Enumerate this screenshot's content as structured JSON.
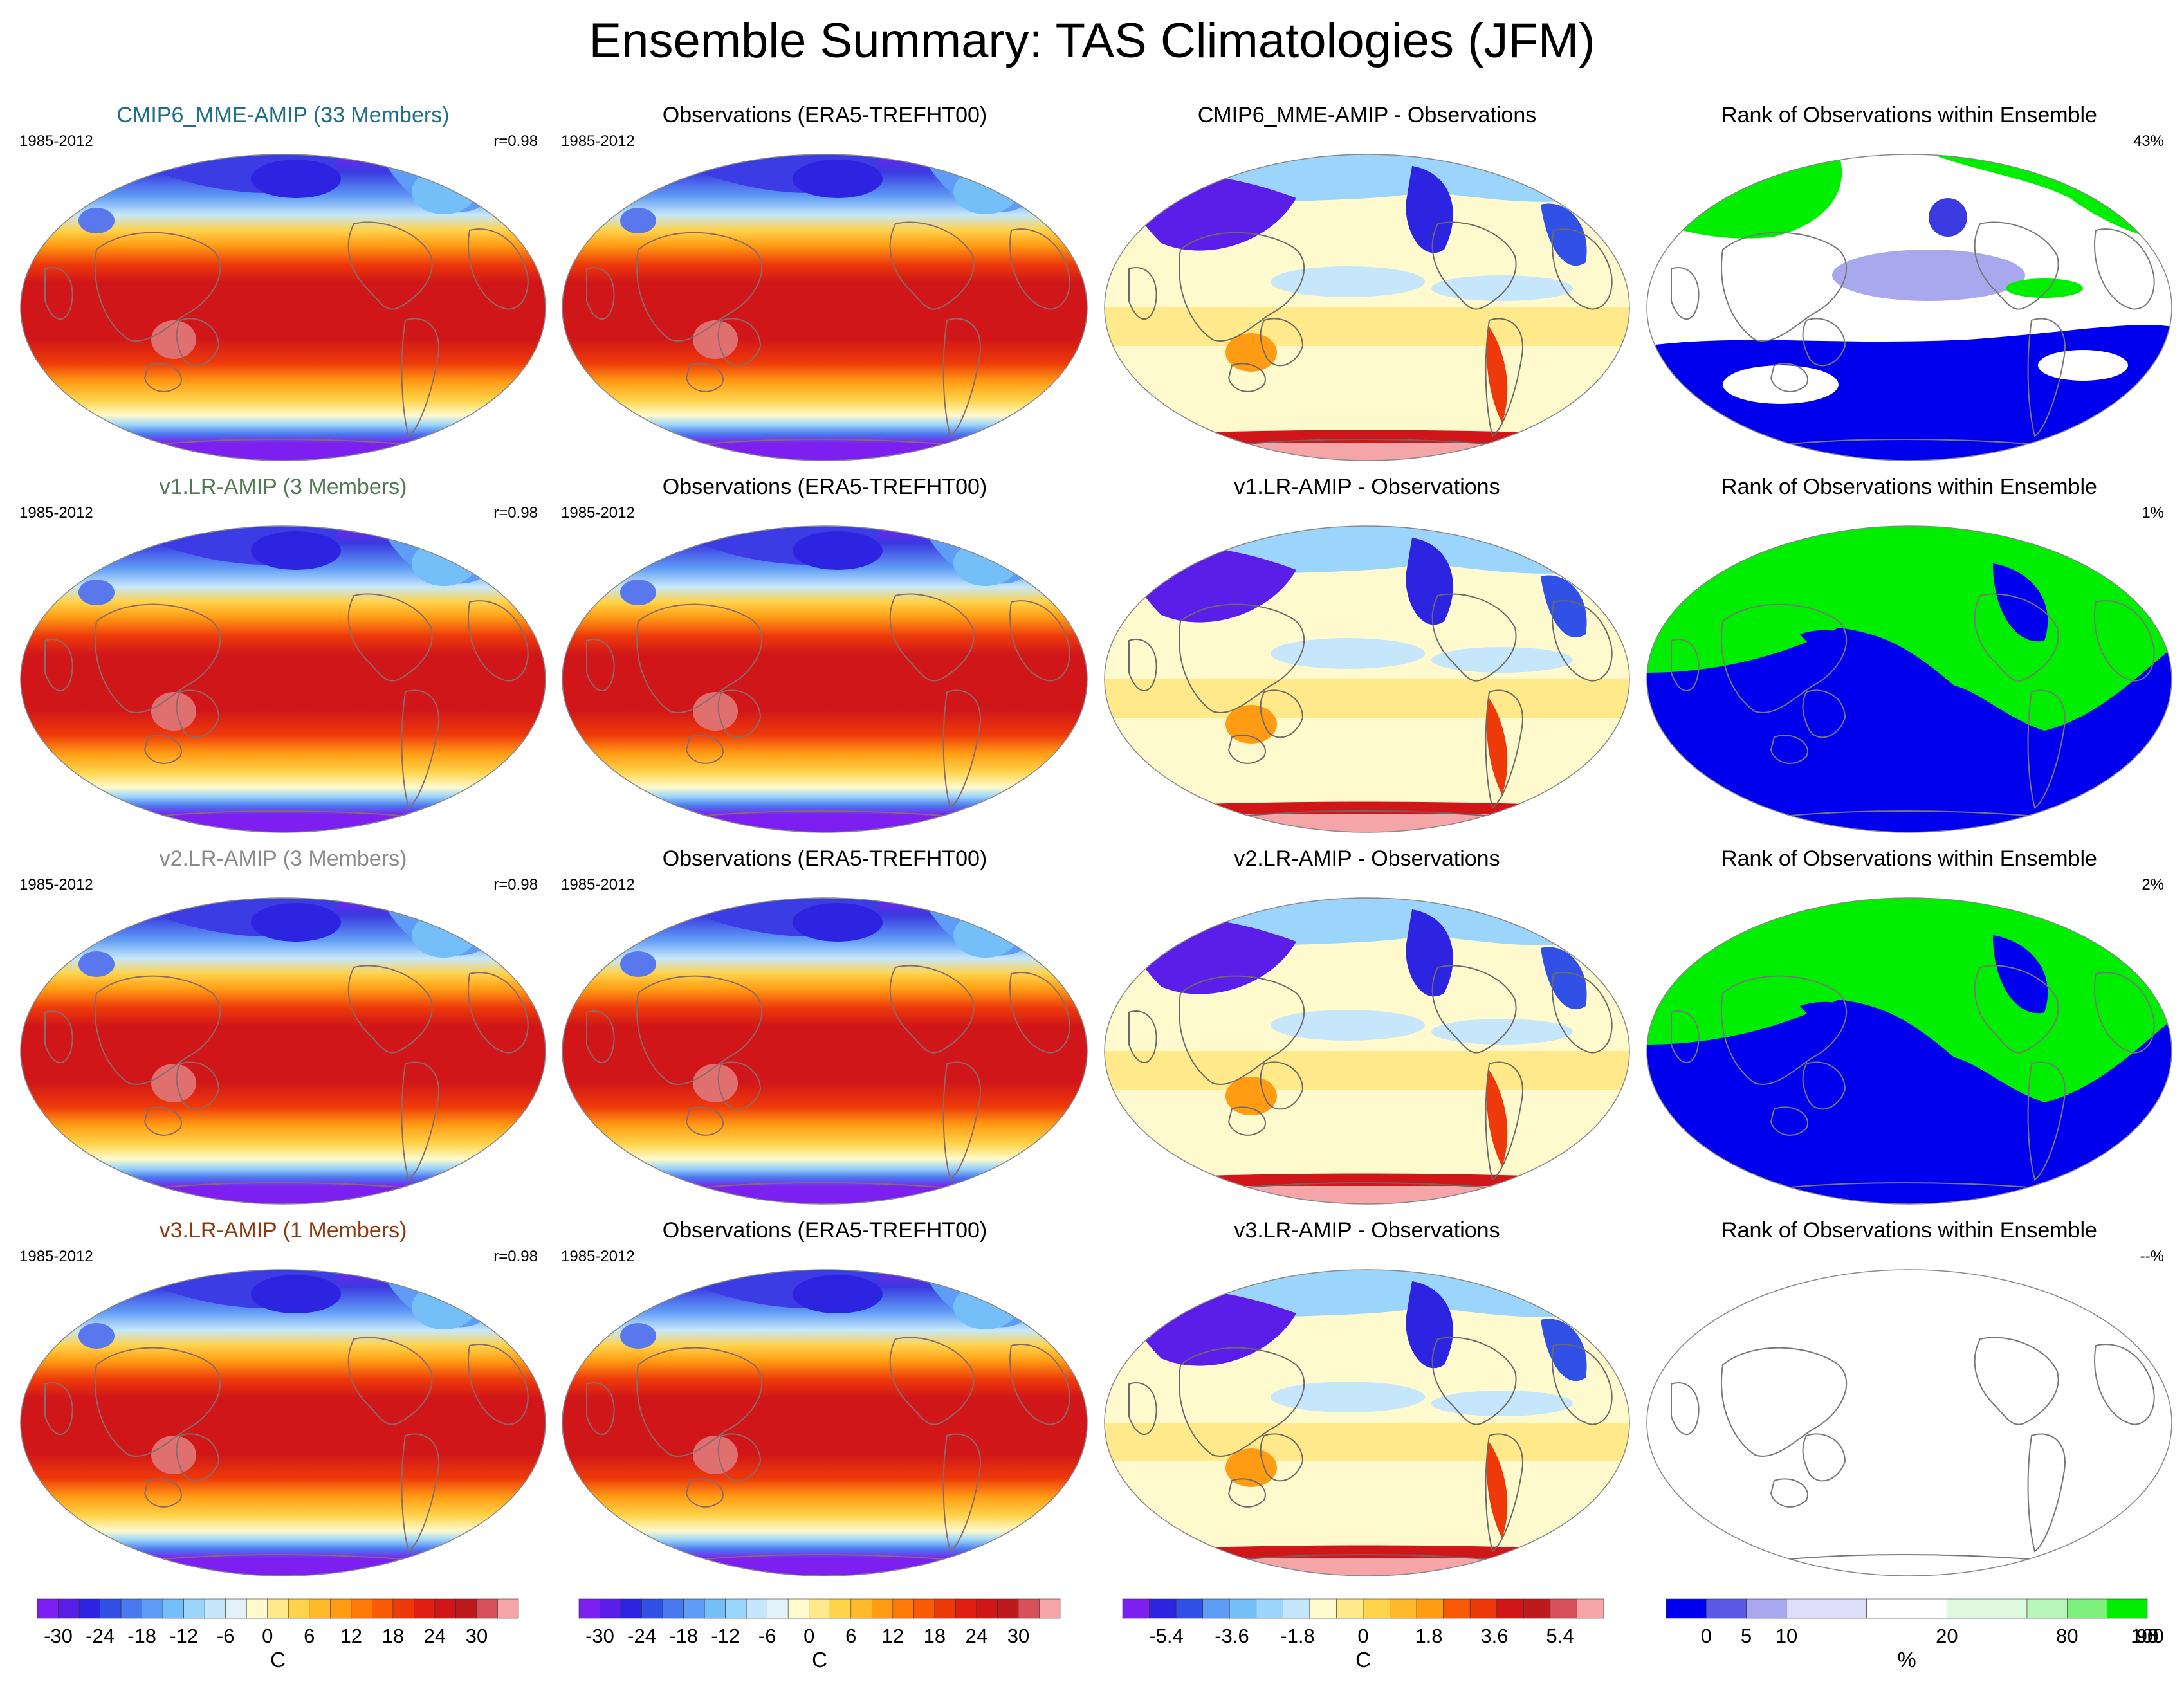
{
  "title": "Ensemble Summary: TAS Climatologies (JFM)",
  "rows": [
    {
      "model": {
        "title": "CMIP6_MME-AMIP (33 Members)",
        "color": "#1f6e8c",
        "years": "1985-2012",
        "stat": "r=0.98"
      },
      "obs": {
        "title": "Observations (ERA5-TREFHT00)",
        "years": "1985-2012"
      },
      "diff": {
        "title": "CMIP6_MME-AMIP - Observations"
      },
      "rank": {
        "title": "Rank of Observations within Ensemble",
        "stat": "43%",
        "pattern": "mixed"
      }
    },
    {
      "model": {
        "title": "v1.LR-AMIP (3 Members)",
        "color": "#4f7a52",
        "years": "1985-2012",
        "stat": "r=0.98"
      },
      "obs": {
        "title": "Observations (ERA5-TREFHT00)",
        "years": "1985-2012"
      },
      "diff": {
        "title": "v1.LR-AMIP - Observations"
      },
      "rank": {
        "title": "Rank of Observations within Ensemble",
        "stat": "1%",
        "pattern": "binary"
      }
    },
    {
      "model": {
        "title": "v2.LR-AMIP (3 Members)",
        "color": "#8a8a8a",
        "years": "1985-2012",
        "stat": "r=0.98"
      },
      "obs": {
        "title": "Observations (ERA5-TREFHT00)",
        "years": "1985-2012"
      },
      "diff": {
        "title": "v2.LR-AMIP - Observations"
      },
      "rank": {
        "title": "Rank of Observations within Ensemble",
        "stat": "2%",
        "pattern": "binary"
      }
    },
    {
      "model": {
        "title": "v3.LR-AMIP (1 Members)",
        "color": "#8b3a0f",
        "years": "1985-2012",
        "stat": "r=0.98"
      },
      "obs": {
        "title": "Observations (ERA5-TREFHT00)",
        "years": "1985-2012"
      },
      "diff": {
        "title": "v3.LR-AMIP - Observations"
      },
      "rank": {
        "title": "Rank of Observations within Ensemble",
        "stat": "--%",
        "pattern": "empty"
      }
    }
  ],
  "colorbars": [
    {
      "unit": "C",
      "colors": [
        "#7d1ff0",
        "#5a1ee8",
        "#2c24e0",
        "#3050e6",
        "#4a78ee",
        "#5f9cf5",
        "#74bff8",
        "#9bd5fb",
        "#c6e7fb",
        "#e3f2fa",
        "#fffacd",
        "#ffe98a",
        "#ffd34a",
        "#ffb92a",
        "#ff9c14",
        "#ff7a0a",
        "#f85a06",
        "#ee3a0a",
        "#e01f12",
        "#d01618",
        "#bd1a1e",
        "#d6515a",
        "#f5a5a8"
      ],
      "ticks": [
        "-30",
        "-24",
        "-18",
        "-12",
        "-6",
        "0",
        "6",
        "12",
        "18",
        "24",
        "30"
      ],
      "tick_at": [
        1,
        3,
        5,
        7,
        9,
        11,
        13,
        15,
        17,
        19,
        21
      ]
    },
    {
      "unit": "C",
      "colors": [
        "#7d1ff0",
        "#5a1ee8",
        "#2c24e0",
        "#3050e6",
        "#4a78ee",
        "#5f9cf5",
        "#74bff8",
        "#9bd5fb",
        "#c6e7fb",
        "#e3f2fa",
        "#fffacd",
        "#ffe98a",
        "#ffd34a",
        "#ffb92a",
        "#ff9c14",
        "#ff7a0a",
        "#f85a06",
        "#ee3a0a",
        "#e01f12",
        "#d01618",
        "#bd1a1e",
        "#d6515a",
        "#f5a5a8"
      ],
      "ticks": [
        "-30",
        "-24",
        "-18",
        "-12",
        "-6",
        "0",
        "6",
        "12",
        "18",
        "24",
        "30"
      ],
      "tick_at": [
        1,
        3,
        5,
        7,
        9,
        11,
        13,
        15,
        17,
        19,
        21
      ]
    },
    {
      "unit": "C",
      "colors": [
        "#7d1ff0",
        "#2c24e0",
        "#3050e6",
        "#5f9cf5",
        "#74bff8",
        "#9bd5fb",
        "#c6e7fb",
        "#fffacd",
        "#ffe98a",
        "#ffd34a",
        "#ffb92a",
        "#ff9c14",
        "#f85a06",
        "#ee3a0a",
        "#d01618",
        "#bd1a1e",
        "#d6515a",
        "#f5a5a8"
      ],
      "ticks": [
        "-5.4",
        "-3.6",
        "-1.8",
        "0",
        "1.8",
        "3.6",
        "5.4"
      ],
      "tick_at": [
        2,
        5,
        8,
        11,
        14,
        17,
        20
      ],
      "segments": 22
    },
    {
      "unit": "%",
      "colors": [
        "#0000ee",
        "#5a5ae6",
        "#a8a8ee",
        "#dedefa",
        "#ffffff",
        "#dff9df",
        "#b8f5b8",
        "#7ef07e",
        "#00ee00"
      ],
      "widths": [
        1,
        1,
        1,
        2,
        2,
        2,
        1,
        1,
        1
      ],
      "ticks": [
        "0",
        "5",
        "10",
        "20",
        "80",
        "90",
        "95",
        "100"
      ],
      "tick_at": [
        1,
        2,
        3,
        5,
        7,
        9,
        10,
        11
      ]
    }
  ]
}
